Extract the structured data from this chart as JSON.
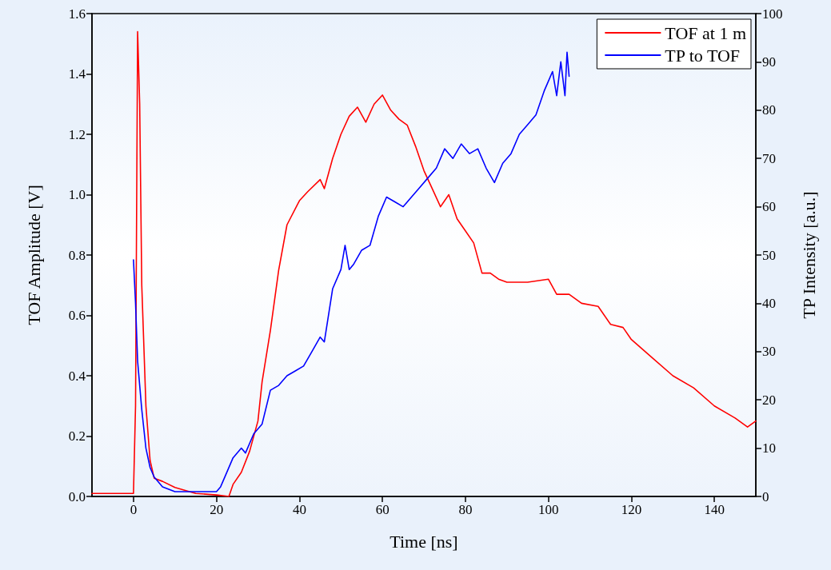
{
  "chart_data": {
    "type": "line",
    "xlabel": "Time [ns]",
    "ylabel": "TOF Amplitude [V]",
    "y2label": "TP Intensity [a.u.]",
    "xlim": [
      -10,
      150
    ],
    "xticks": [
      0,
      20,
      40,
      60,
      80,
      100,
      120,
      140
    ],
    "ylim": [
      0,
      1.6
    ],
    "yticks": [
      {
        "value": 0,
        "label": "0.0"
      },
      0.2,
      0.4,
      0.6,
      0.8,
      {
        "value": 1,
        "label": "1.0"
      },
      1.2,
      1.4,
      1.6
    ],
    "y2lim": [
      0,
      100
    ],
    "y2ticks": [
      0,
      10,
      20,
      30,
      40,
      50,
      60,
      70,
      80,
      90,
      100
    ],
    "grid": false,
    "legend": "top right",
    "marker": "none",
    "line_style": "solid",
    "series": [
      {
        "name": "TOF at 1 m",
        "color": "#ff0000",
        "x": [
          -10,
          -5,
          0,
          0.5,
          1,
          1.5,
          2,
          3,
          4,
          5,
          7,
          10,
          15,
          20,
          23,
          24,
          26,
          28,
          30,
          31,
          33,
          35,
          37,
          40,
          42,
          45,
          46,
          48,
          50,
          52,
          54,
          56,
          58,
          60,
          62,
          64,
          66,
          68,
          70,
          72,
          74,
          76,
          78,
          80,
          82,
          84,
          86,
          88,
          90,
          95,
          100,
          102,
          105,
          108,
          112,
          115,
          118,
          120,
          125,
          130,
          135,
          140,
          145,
          148,
          150
        ],
        "values": [
          0.01,
          0.01,
          0.01,
          0.3,
          1.54,
          1.3,
          0.7,
          0.3,
          0.12,
          0.06,
          0.05,
          0.03,
          0.01,
          0.005,
          0.0,
          0.04,
          0.08,
          0.15,
          0.25,
          0.38,
          0.55,
          0.75,
          0.9,
          0.98,
          1.01,
          1.05,
          1.02,
          1.12,
          1.2,
          1.26,
          1.29,
          1.24,
          1.3,
          1.33,
          1.28,
          1.25,
          1.23,
          1.16,
          1.08,
          1.02,
          0.96,
          1.0,
          0.92,
          0.88,
          0.84,
          0.74,
          0.74,
          0.72,
          0.71,
          0.71,
          0.72,
          0.67,
          0.67,
          0.64,
          0.63,
          0.57,
          0.56,
          0.52,
          0.46,
          0.4,
          0.36,
          0.3,
          0.26,
          0.23,
          0.25
        ]
      },
      {
        "name": "TP to TOF",
        "color": "#0000ff",
        "axis": "y2",
        "x": [
          0,
          0.5,
          1,
          2,
          3,
          4,
          5,
          7,
          10,
          15,
          20,
          21,
          22,
          24,
          26,
          27,
          29,
          31,
          33,
          35,
          37,
          39,
          41,
          43,
          45,
          46,
          48,
          50,
          51,
          52,
          53,
          55,
          57,
          59,
          61,
          63,
          65,
          67,
          69,
          71,
          73,
          75,
          77,
          79,
          81,
          83,
          85,
          87,
          89,
          91,
          93,
          95,
          97,
          99,
          100,
          101,
          102,
          103,
          104,
          104.5,
          105
        ],
        "values": [
          49,
          40,
          28,
          18,
          10,
          6,
          4,
          2,
          1,
          1,
          1,
          2,
          4,
          8,
          10,
          9,
          13,
          15,
          22,
          23,
          25,
          26,
          27,
          30,
          33,
          32,
          43,
          47,
          52,
          47,
          48,
          51,
          52,
          58,
          62,
          61,
          60,
          62,
          64,
          66,
          68,
          72,
          70,
          73,
          71,
          72,
          68,
          65,
          69,
          71,
          75,
          77,
          79,
          84,
          86,
          88,
          83,
          90,
          83,
          92,
          87
        ]
      }
    ]
  }
}
